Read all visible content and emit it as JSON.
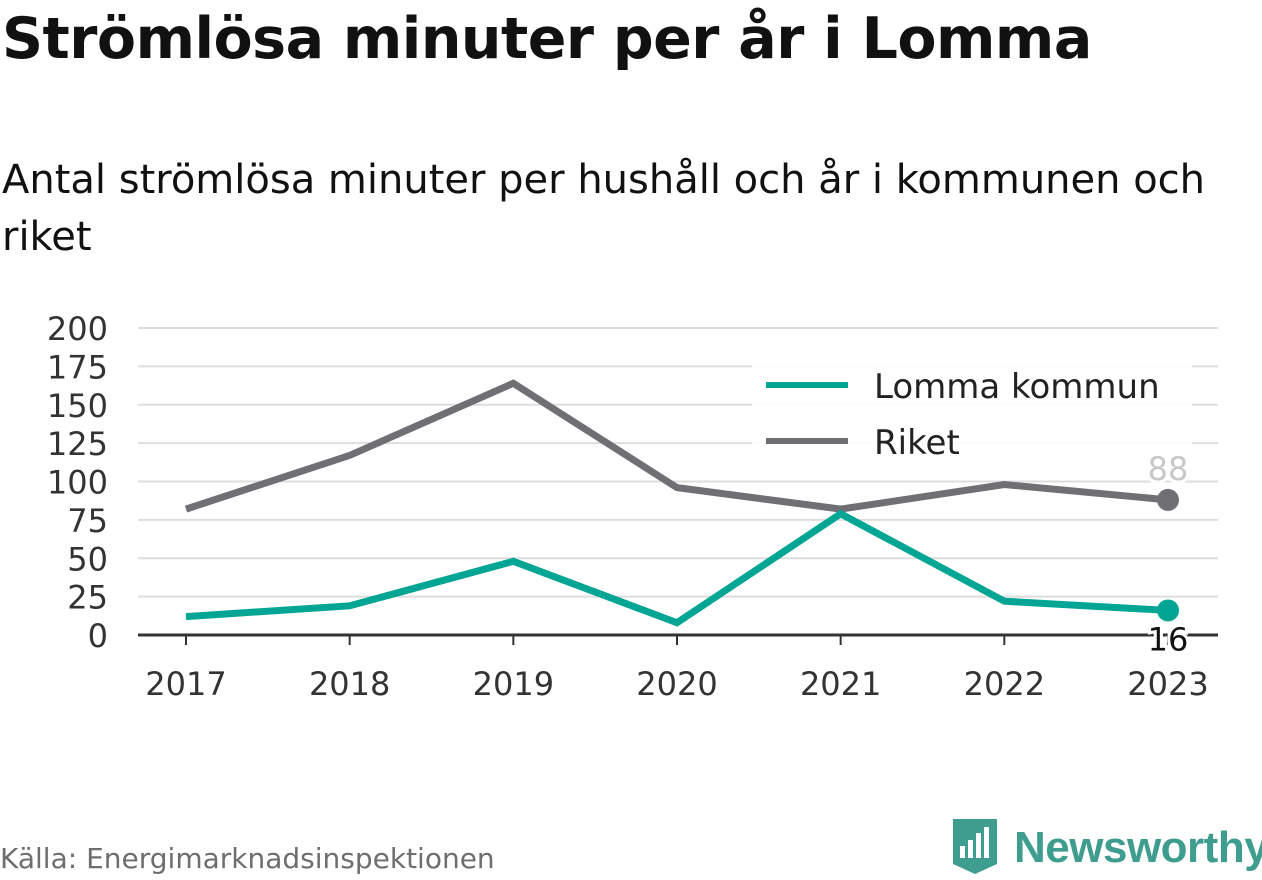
{
  "title": "Strömlösa minuter per år i Lomma",
  "subtitle": "Antal strömlösa minuter per hushåll och år i kommunen och riket",
  "source": "Källa: Energimarknadsinspektionen",
  "brand": {
    "name": "Newsworthy",
    "icon": "newsworthy-logo-icon",
    "color": "#3f9d8f"
  },
  "chart_data": {
    "type": "line",
    "x": [
      "2017",
      "2018",
      "2019",
      "2020",
      "2021",
      "2022",
      "2023"
    ],
    "ylim": [
      0,
      200
    ],
    "yticks": [
      0,
      25,
      50,
      75,
      100,
      125,
      150,
      175,
      200
    ],
    "grid": true,
    "legend_position": "top-right",
    "series": [
      {
        "name": "Lomma kommun",
        "color": "#00a593",
        "values": [
          12,
          19,
          48,
          8,
          79,
          22,
          16
        ],
        "end_label": "16"
      },
      {
        "name": "Riket",
        "color": "#707074",
        "values": [
          82,
          117,
          164,
          96,
          82,
          98,
          88
        ],
        "end_label": "88"
      }
    ]
  }
}
